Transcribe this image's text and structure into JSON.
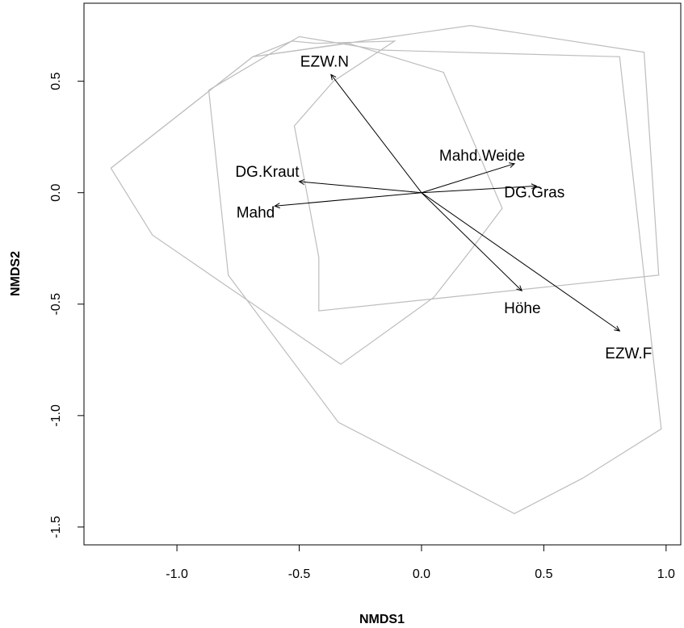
{
  "chart_data": {
    "type": "scatter",
    "xlabel": "NMDS1",
    "ylabel": "NMDS2",
    "xlim": [
      -1.38,
      1.06
    ],
    "ylim": [
      -1.58,
      0.85
    ],
    "xticks": [
      -1.0,
      -0.5,
      0.0,
      0.5,
      1.0
    ],
    "xtick_labels": [
      "-1.0",
      "-0.5",
      "0.0",
      "0.5",
      "1.0"
    ],
    "yticks": [
      -1.5,
      -1.0,
      -0.5,
      0.0,
      0.5
    ],
    "ytick_labels": [
      "-1.5",
      "-1.0",
      "-0.5",
      "0.0",
      "0.5"
    ],
    "hull_color": "#bdbdbd",
    "hulls": [
      [
        [
          -1.27,
          0.11
        ],
        [
          -0.69,
          0.61
        ],
        [
          0.2,
          0.75
        ],
        [
          0.91,
          0.63
        ],
        [
          0.97,
          -0.37
        ],
        [
          -0.42,
          -0.53
        ],
        [
          -0.42,
          -0.29
        ],
        [
          -0.52,
          0.3
        ],
        [
          -0.36,
          0.5
        ],
        [
          -0.11,
          0.68
        ],
        [
          -0.43,
          0.67
        ],
        [
          -0.53,
          0.68
        ],
        [
          -0.69,
          0.61
        ]
      ],
      [
        [
          -1.27,
          0.11
        ],
        [
          -0.69,
          0.61
        ],
        [
          -0.3,
          0.67
        ],
        [
          0.09,
          0.54
        ],
        [
          0.33,
          -0.07
        ],
        [
          0.2,
          -0.26
        ],
        [
          0.05,
          -0.47
        ],
        [
          -0.33,
          -0.77
        ],
        [
          -1.1,
          -0.19
        ],
        [
          -1.27,
          0.11
        ]
      ],
      [
        [
          -0.87,
          0.46
        ],
        [
          -0.5,
          0.7
        ],
        [
          -0.17,
          0.64
        ],
        [
          0.81,
          0.61
        ],
        [
          0.98,
          -1.06
        ],
        [
          0.66,
          -1.28
        ],
        [
          0.38,
          -1.44
        ],
        [
          -0.34,
          -1.03
        ],
        [
          -0.79,
          -0.37
        ],
        [
          -0.87,
          0.46
        ]
      ]
    ],
    "vectors": [
      {
        "name": "EZW.N",
        "x": -0.37,
        "y": 0.53
      },
      {
        "name": "Mahd.Weide",
        "x": 0.38,
        "y": 0.13
      },
      {
        "name": "DG.Gras",
        "x": 0.47,
        "y": 0.03
      },
      {
        "name": "DG.Kraut",
        "x": -0.5,
        "y": 0.05
      },
      {
        "name": "Mahd",
        "x": -0.6,
        "y": -0.06
      },
      {
        "name": "Höhe",
        "x": 0.41,
        "y": -0.44
      },
      {
        "name": "EZW.F",
        "x": 0.81,
        "y": -0.62
      }
    ]
  }
}
